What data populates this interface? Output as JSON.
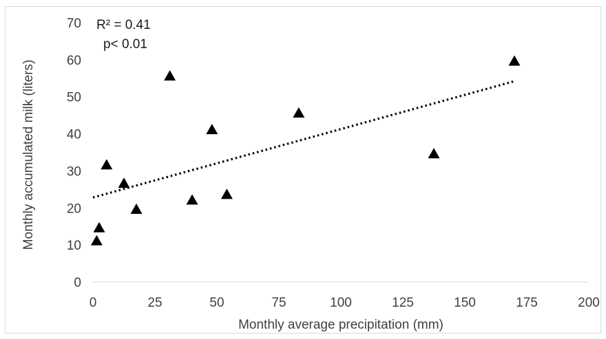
{
  "chart_data": {
    "type": "scatter",
    "title": "",
    "xlabel": "Monthly average precipitation  (mm)",
    "ylabel": "Monthly accumulated milk (liters)",
    "xlim": [
      0,
      200
    ],
    "ylim": [
      0,
      70
    ],
    "xticks": [
      0,
      25,
      50,
      75,
      100,
      125,
      150,
      175,
      200
    ],
    "yticks": [
      0,
      10,
      20,
      30,
      40,
      50,
      60,
      70
    ],
    "grid": false,
    "legend": "none",
    "marker": "triangle",
    "marker_color": "#000000",
    "series": [
      {
        "x": [
          1.5,
          2.5,
          5.5,
          12.5,
          17.5,
          31,
          40,
          48,
          54,
          83,
          137.5,
          170
        ],
        "y": [
          11,
          14.5,
          31.5,
          26.5,
          19.5,
          55.5,
          22,
          41,
          23.5,
          45.5,
          34.5,
          59.5
        ]
      }
    ],
    "trendline": {
      "type": "linear",
      "style": "dotted",
      "color": "#000000",
      "x": [
        0,
        170
      ],
      "y": [
        22.8,
        54.2
      ]
    },
    "annotations": [
      "R² = 0.41",
      "p< 0.01"
    ]
  }
}
